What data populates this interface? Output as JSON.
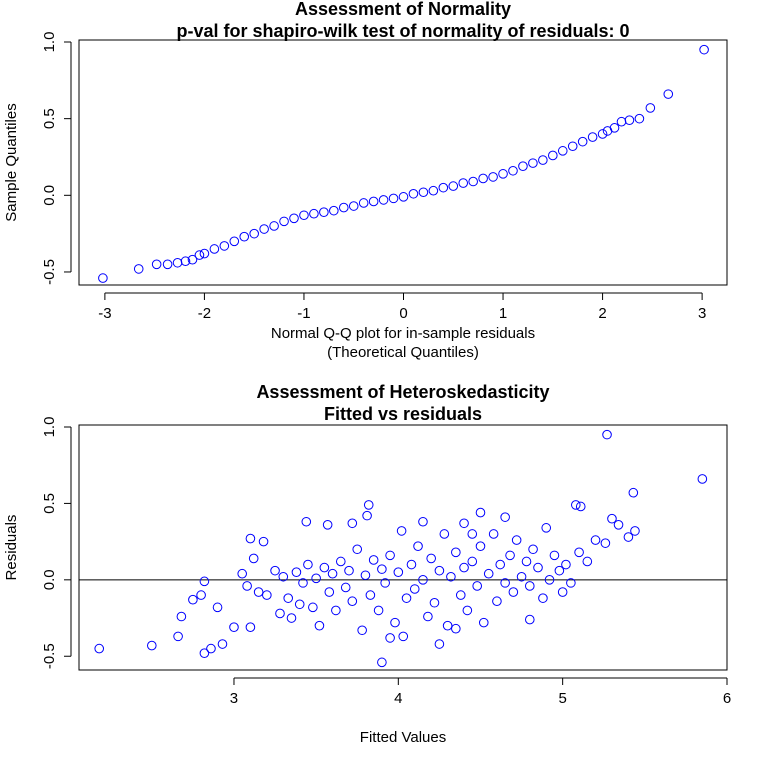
{
  "chart_data": [
    {
      "type": "scatter",
      "title": "Assessment of Normality",
      "subtitle": "p-val for shapiro-wilk test of normality of residuals: 0",
      "xlabel": "Normal Q-Q plot for in-sample residuals",
      "xlabel_sub": "(Theoretical Quantiles)",
      "ylabel": "Sample Quantiles",
      "color": "#0000ff",
      "x": [
        -3.02,
        -2.66,
        -2.48,
        -2.37,
        -2.27,
        -2.19,
        -2.12,
        -2.05,
        -2.0,
        -1.9,
        -1.8,
        -1.7,
        -1.6,
        -1.5,
        -1.4,
        -1.3,
        -1.2,
        -1.1,
        -1.0,
        -0.9,
        -0.8,
        -0.7,
        -0.6,
        -0.5,
        -0.4,
        -0.3,
        -0.2,
        -0.1,
        0,
        0.1,
        0.2,
        0.3,
        0.4,
        0.5,
        0.6,
        0.7,
        0.8,
        0.9,
        1.0,
        1.1,
        1.2,
        1.3,
        1.4,
        1.5,
        1.6,
        1.7,
        1.8,
        1.9,
        2.0,
        2.05,
        2.12,
        2.19,
        2.27,
        2.37,
        2.48,
        2.66,
        3.02
      ],
      "values": [
        -0.54,
        -0.48,
        -0.45,
        -0.45,
        -0.44,
        -0.43,
        -0.42,
        -0.39,
        -0.38,
        -0.35,
        -0.33,
        -0.3,
        -0.27,
        -0.25,
        -0.22,
        -0.2,
        -0.17,
        -0.15,
        -0.13,
        -0.12,
        -0.11,
        -0.1,
        -0.08,
        -0.07,
        -0.05,
        -0.04,
        -0.03,
        -0.02,
        -0.01,
        0.01,
        0.02,
        0.03,
        0.05,
        0.06,
        0.08,
        0.09,
        0.11,
        0.12,
        0.14,
        0.16,
        0.19,
        0.21,
        0.23,
        0.26,
        0.29,
        0.32,
        0.35,
        0.38,
        0.4,
        0.42,
        0.44,
        0.48,
        0.49,
        0.5,
        0.57,
        0.66,
        0.95
      ],
      "xlim": [
        -3.26,
        3.25
      ],
      "ylim": [
        -0.585,
        1.013
      ],
      "xticks": [
        -3,
        -2,
        -1,
        0,
        1,
        2,
        3
      ],
      "yticks": [
        -0.5,
        {
          "value": 0,
          "label": "0.0"
        },
        0.5,
        {
          "value": 1,
          "label": "1.0"
        }
      ]
    },
    {
      "type": "scatter",
      "title": "Assessment of Heteroskedasticity",
      "subtitle": "Fitted vs residuals",
      "xlabel": "Fitted Values",
      "ylabel": "Residuals",
      "color": "#0000ff",
      "hline": 0,
      "x": [
        2.18,
        2.5,
        2.66,
        2.68,
        2.75,
        2.8,
        2.82,
        2.82,
        2.86,
        2.9,
        2.93,
        5.27,
        5.85,
        5.43,
        5.08,
        5.11,
        3.82,
        3.81,
        3.44,
        3.57,
        3.72,
        3.1,
        3.18,
        3.9,
        4.03,
        3.1,
        3.0,
        5.3,
        5.34,
        5.44,
        5.4,
        5.26,
        5.0,
        4.8,
        4.65,
        4.5,
        4.4,
        3.05,
        3.08,
        3.12,
        3.15,
        3.2,
        3.25,
        3.28,
        3.3,
        3.33,
        3.35,
        3.38,
        3.4,
        3.42,
        3.45,
        3.48,
        3.5,
        3.52,
        3.55,
        3.58,
        3.6,
        3.62,
        3.65,
        3.68,
        3.7,
        3.72,
        3.75,
        3.78,
        3.8,
        3.83,
        3.85,
        3.88,
        3.9,
        3.92,
        3.95,
        3.98,
        4.0,
        4.02,
        4.05,
        4.08,
        4.1,
        4.12,
        4.15,
        4.18,
        4.2,
        4.22,
        4.25,
        4.28,
        4.3,
        4.32,
        4.35,
        4.38,
        4.4,
        4.42,
        4.45,
        4.48,
        4.5,
        4.52,
        4.55,
        4.58,
        4.6,
        4.62,
        4.65,
        4.68,
        4.7,
        4.72,
        4.75,
        4.78,
        4.8,
        4.82,
        4.85,
        4.88,
        4.9,
        4.92,
        4.95,
        4.98,
        5.02,
        5.05,
        5.1,
        5.15,
        5.2,
        4.25,
        4.35,
        4.15,
        4.45,
        3.95
      ],
      "values": [
        -0.45,
        -0.43,
        -0.37,
        -0.24,
        -0.13,
        -0.1,
        -0.01,
        -0.48,
        -0.45,
        -0.18,
        -0.42,
        0.95,
        0.66,
        0.57,
        0.49,
        0.48,
        0.49,
        0.42,
        0.38,
        0.36,
        0.37,
        0.27,
        0.25,
        -0.54,
        -0.37,
        -0.31,
        -0.31,
        0.4,
        0.36,
        0.32,
        0.28,
        0.24,
        -0.08,
        -0.26,
        0.41,
        0.44,
        0.37,
        0.04,
        -0.04,
        0.14,
        -0.08,
        -0.1,
        0.06,
        -0.22,
        0.02,
        -0.12,
        -0.25,
        0.05,
        -0.16,
        -0.02,
        0.1,
        -0.18,
        0.01,
        -0.3,
        0.08,
        -0.08,
        0.04,
        -0.2,
        0.12,
        -0.05,
        0.06,
        -0.14,
        0.2,
        -0.33,
        0.03,
        -0.1,
        0.13,
        -0.2,
        0.07,
        -0.02,
        0.16,
        -0.28,
        0.05,
        0.32,
        -0.12,
        0.1,
        -0.06,
        0.22,
        0.0,
        -0.24,
        0.14,
        -0.15,
        0.06,
        0.3,
        -0.3,
        0.02,
        0.18,
        -0.1,
        0.08,
        -0.2,
        0.12,
        -0.04,
        0.22,
        -0.28,
        0.04,
        0.3,
        -0.14,
        0.1,
        -0.02,
        0.16,
        -0.08,
        0.26,
        0.02,
        0.12,
        -0.04,
        0.2,
        0.08,
        -0.12,
        0.34,
        0.0,
        0.16,
        0.06,
        0.1,
        -0.02,
        0.18,
        0.12,
        0.26,
        -0.42,
        -0.32,
        0.38,
        0.3,
        -0.38
      ],
      "xlim": [
        2.057,
        6.0
      ],
      "ylim": [
        -0.59,
        1.013
      ],
      "xticks": [
        3,
        4,
        5,
        6
      ],
      "yticks": [
        -0.5,
        {
          "value": 0,
          "label": "0.0"
        },
        0.5,
        {
          "value": 1,
          "label": "1.0"
        }
      ]
    }
  ]
}
